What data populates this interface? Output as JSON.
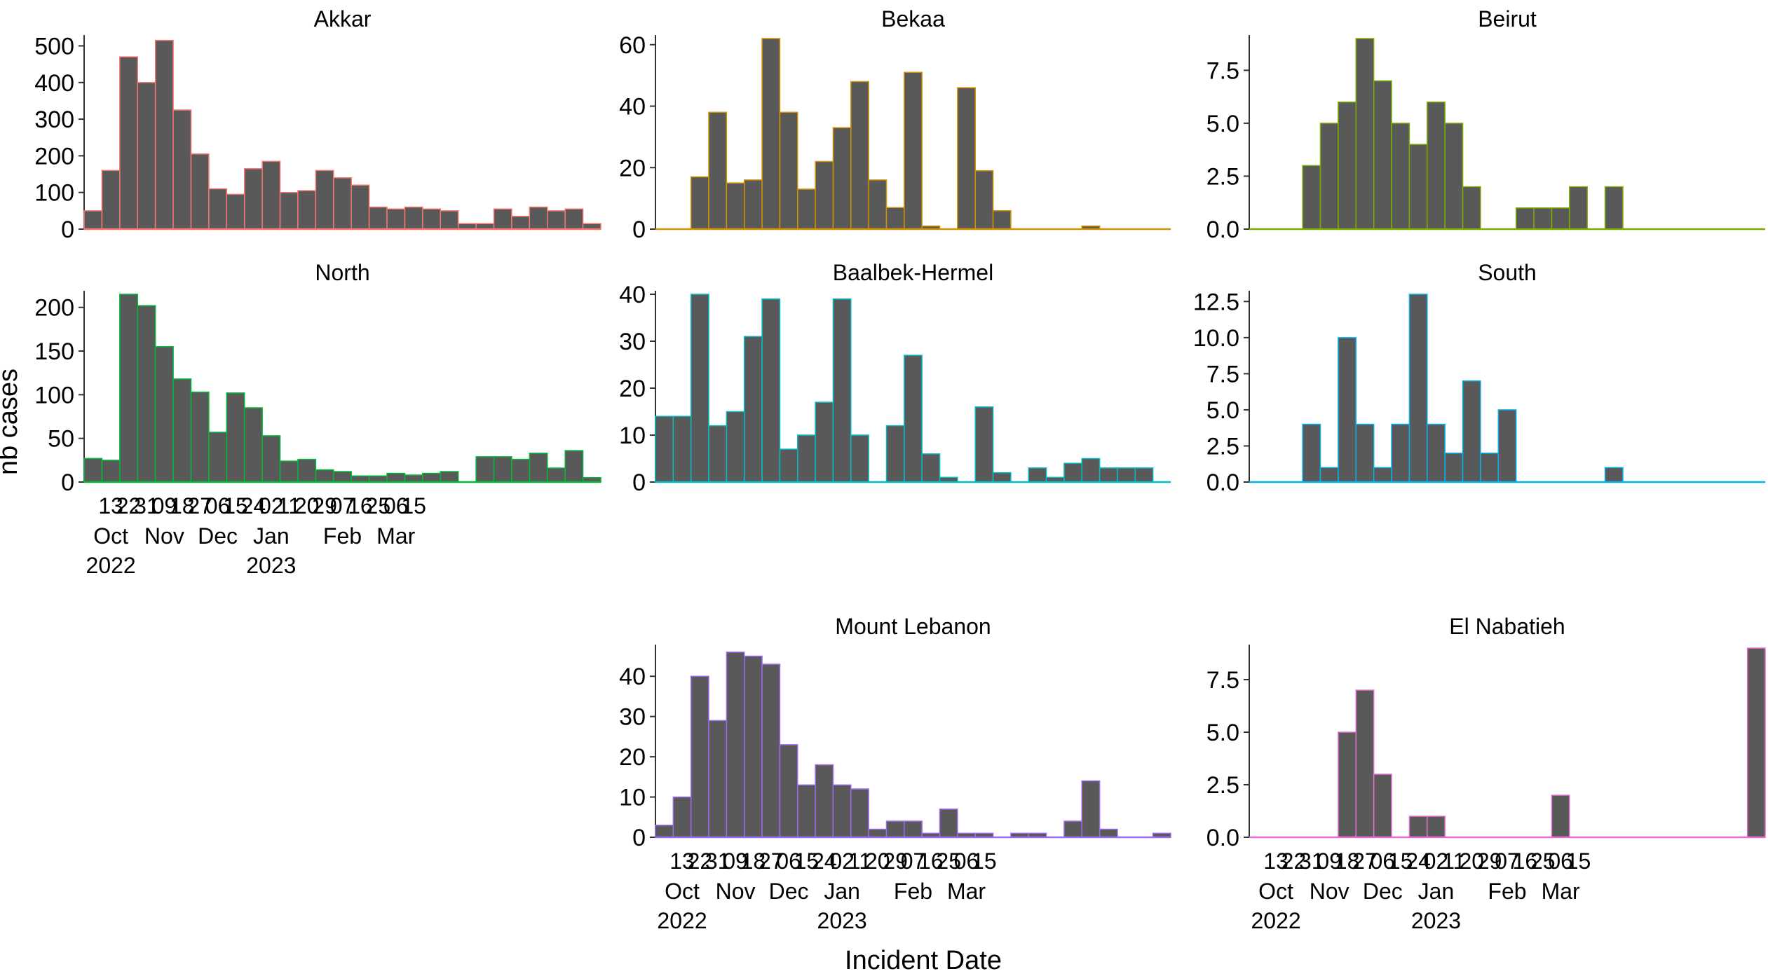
{
  "figure": {
    "xlabel": "Incident Date",
    "ylabel": "nb cases"
  },
  "date_ticks": [
    "13",
    "22",
    "31",
    "09",
    "18",
    "27",
    "06",
    "15",
    "24",
    "02",
    "11",
    "20",
    "29",
    "07",
    "16",
    "25",
    "06",
    "15"
  ],
  "month_labels": [
    {
      "tick": 0,
      "month": "Oct",
      "year": "2022"
    },
    {
      "tick": 3,
      "month": "Nov"
    },
    {
      "tick": 6,
      "month": "Dec"
    },
    {
      "tick": 9,
      "month": "Jan",
      "year": "2023"
    },
    {
      "tick": 13,
      "month": "Feb"
    },
    {
      "tick": 16,
      "month": "Mar"
    }
  ],
  "chart_data": [
    {
      "type": "bar",
      "title": "Akkar",
      "color": "#f8766d",
      "bar_fill": "#595959",
      "ylim": [
        0,
        520
      ],
      "yticks": [
        "0",
        "100",
        "200",
        "300",
        "400",
        "500"
      ],
      "ytick_values": [
        0,
        100,
        200,
        300,
        400,
        500
      ],
      "show_x_ticks": false,
      "values": [
        50,
        160,
        470,
        400,
        515,
        325,
        205,
        110,
        95,
        165,
        185,
        100,
        105,
        160,
        140,
        120,
        60,
        55,
        60,
        55,
        50,
        15,
        15,
        55,
        35,
        60,
        50,
        55,
        15
      ]
    },
    {
      "type": "bar",
      "title": "Bekaa",
      "color": "#d39200",
      "bar_fill": "#595959",
      "ylim": [
        0,
        62
      ],
      "yticks": [
        "0",
        "20",
        "40",
        "60"
      ],
      "ytick_values": [
        0,
        20,
        40,
        60
      ],
      "show_x_ticks": false,
      "values": [
        0,
        0,
        17,
        38,
        15,
        16,
        62,
        38,
        13,
        22,
        33,
        48,
        16,
        7,
        51,
        1,
        0,
        46,
        19,
        6,
        0,
        0,
        0,
        0,
        1,
        0,
        0,
        0,
        0
      ]
    },
    {
      "type": "bar",
      "title": "Beirut",
      "color": "#7cae00",
      "bar_fill": "#595959",
      "ylim": [
        0,
        9
      ],
      "yticks": [
        "0.0",
        "2.5",
        "5.0",
        "7.5"
      ],
      "ytick_values": [
        0,
        2.5,
        5,
        7.5
      ],
      "show_x_ticks": false,
      "values": [
        0,
        0,
        0,
        3,
        5,
        6,
        9,
        7,
        5,
        4,
        6,
        5,
        2,
        0,
        0,
        1,
        1,
        1,
        2,
        0,
        2,
        0,
        0,
        0,
        0,
        0,
        0,
        0,
        0
      ]
    },
    {
      "type": "bar",
      "title": "North",
      "color": "#00ba38",
      "bar_fill": "#595959",
      "ylim": [
        0,
        215
      ],
      "yticks": [
        "0",
        "50",
        "100",
        "150",
        "200"
      ],
      "ytick_values": [
        0,
        50,
        100,
        150,
        200
      ],
      "show_x_ticks": true,
      "values": [
        27,
        25,
        215,
        202,
        155,
        118,
        103,
        57,
        102,
        85,
        53,
        24,
        26,
        14,
        12,
        7,
        7,
        10,
        8,
        10,
        12,
        0,
        29,
        29,
        26,
        33,
        16,
        36,
        5
      ]
    },
    {
      "type": "bar",
      "title": "Baalbek-Hermel",
      "color": "#00bfc4",
      "bar_fill": "#595959",
      "ylim": [
        0,
        40
      ],
      "yticks": [
        "0",
        "10",
        "20",
        "30",
        "40"
      ],
      "ytick_values": [
        0,
        10,
        20,
        30,
        40
      ],
      "show_x_ticks": false,
      "values": [
        14,
        14,
        40,
        12,
        15,
        31,
        39,
        7,
        10,
        17,
        39,
        10,
        0,
        12,
        27,
        6,
        1,
        0,
        16,
        2,
        0,
        3,
        1,
        4,
        5,
        3,
        3,
        3,
        0
      ]
    },
    {
      "type": "bar",
      "title": "South",
      "color": "#00b4ef",
      "bar_fill": "#595959",
      "ylim": [
        0,
        13
      ],
      "yticks": [
        "0.0",
        "2.5",
        "5.0",
        "7.5",
        "10.0",
        "12.5"
      ],
      "ytick_values": [
        0,
        2.5,
        5,
        7.5,
        10,
        12.5
      ],
      "show_x_ticks": false,
      "values": [
        0,
        0,
        0,
        4,
        1,
        10,
        4,
        1,
        4,
        13,
        4,
        2,
        7,
        2,
        5,
        0,
        0,
        0,
        0,
        0,
        1,
        0,
        0,
        0,
        0,
        0,
        0,
        0,
        0
      ]
    },
    {
      "type": "bar",
      "title": "Mount Lebanon",
      "color": "#9d6bf0",
      "bar_fill": "#595959",
      "ylim": [
        0,
        47
      ],
      "yticks": [
        "0",
        "10",
        "20",
        "30",
        "40"
      ],
      "ytick_values": [
        0,
        10,
        20,
        30,
        40
      ],
      "show_x_ticks": true,
      "values": [
        3,
        10,
        40,
        29,
        46,
        45,
        43,
        23,
        13,
        18,
        13,
        12,
        2,
        4,
        4,
        1,
        7,
        1,
        1,
        0,
        1,
        1,
        0,
        4,
        14,
        2,
        0,
        0,
        1
      ]
    },
    {
      "type": "bar",
      "title": "El Nabatieh",
      "color": "#e96ed3",
      "bar_fill": "#595959",
      "ylim": [
        0,
        9
      ],
      "yticks": [
        "0.0",
        "2.5",
        "5.0",
        "7.5"
      ],
      "ytick_values": [
        0,
        2.5,
        5,
        7.5
      ],
      "show_x_ticks": true,
      "values": [
        0,
        0,
        0,
        0,
        0,
        5,
        7,
        3,
        0,
        1,
        1,
        0,
        0,
        0,
        0,
        0,
        0,
        2,
        0,
        0,
        0,
        0,
        0,
        0,
        0,
        0,
        0,
        0,
        9
      ]
    }
  ]
}
